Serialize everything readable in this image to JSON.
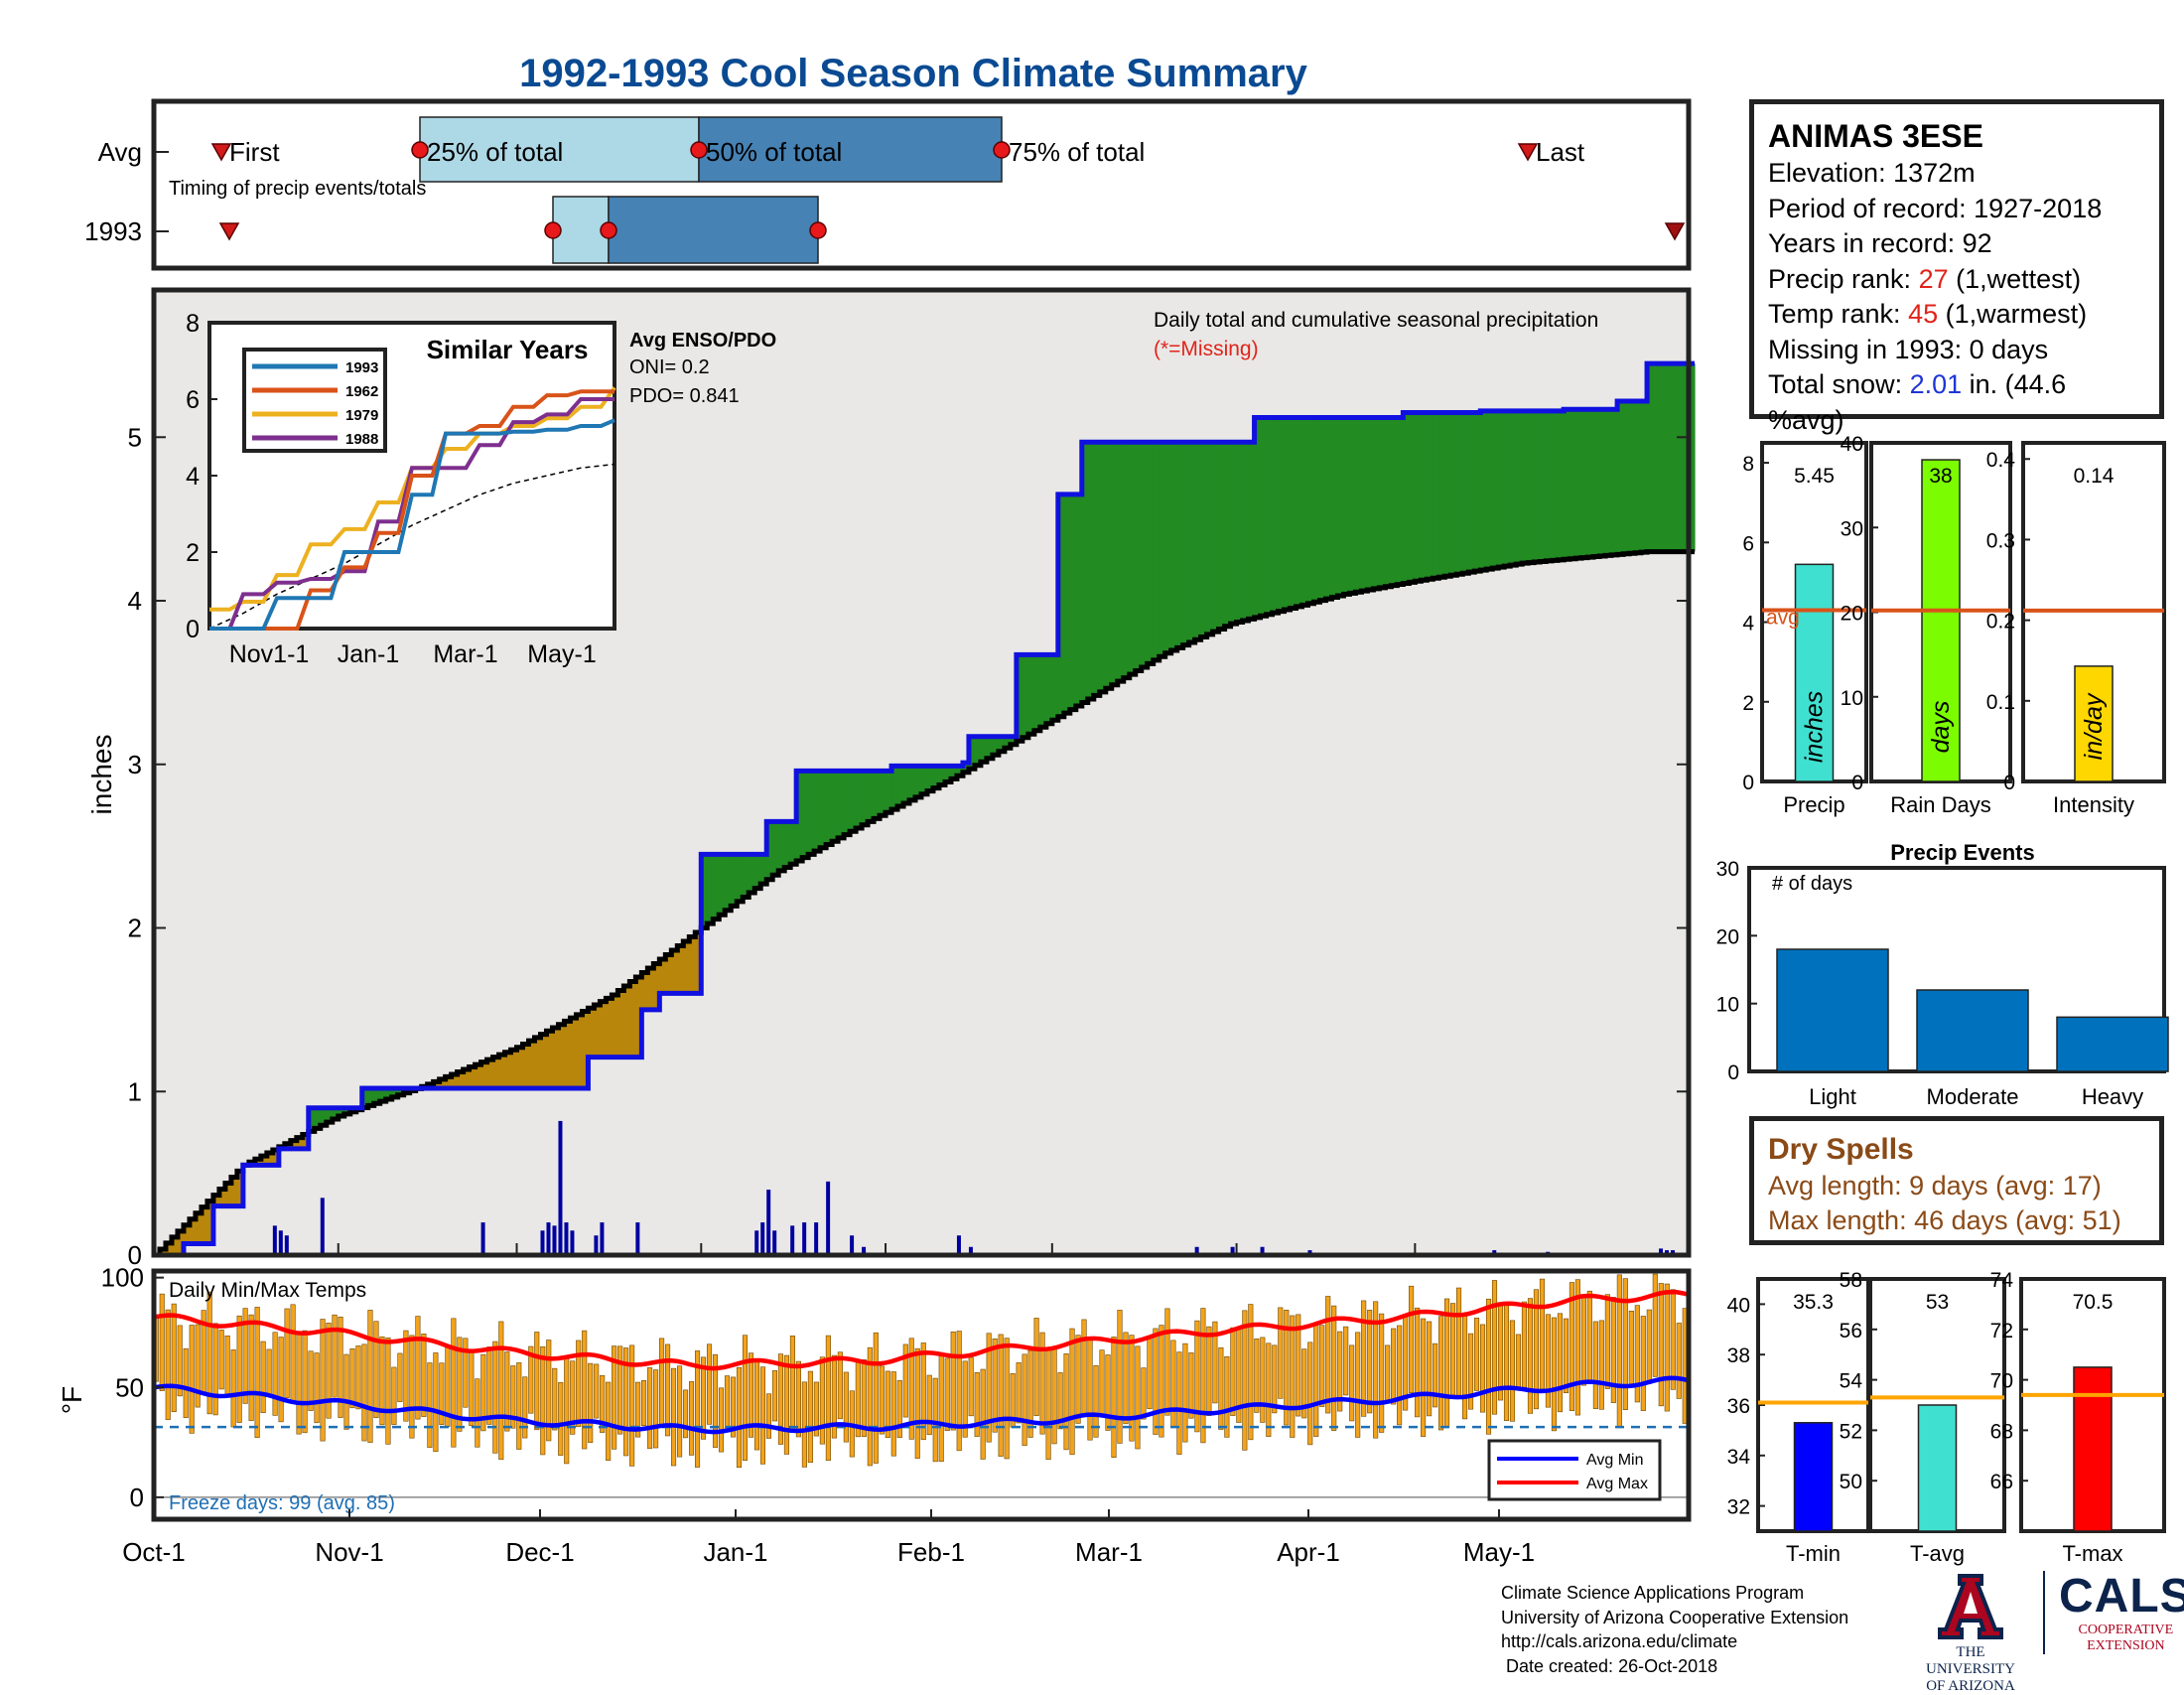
{
  "title": "1992-1993 Cool Season Climate Summary",
  "timing": {
    "row_labels": [
      "Avg",
      "1993"
    ],
    "caption": "Timing of precip events/totals",
    "markers": [
      "First",
      "25% of total",
      "50% of total",
      "75% of total",
      "Last"
    ]
  },
  "main_chart": {
    "ylabel": "inches",
    "yticks": [
      "0",
      "1",
      "2",
      "3",
      "4",
      "5"
    ],
    "caption": "Daily total and cumulative seasonal precipitation",
    "missing_note": "(*=Missing)",
    "xticks": [
      "Oct-1",
      "Nov-1",
      "Dec-1",
      "Jan-1",
      "Feb-1",
      "Mar-1",
      "Apr-1",
      "May-1"
    ]
  },
  "inset": {
    "title": "Similar Years",
    "legend": [
      "1993",
      "1962",
      "1979",
      "1988"
    ],
    "series_colors": [
      "#1f77b4",
      "#d95319",
      "#edb120",
      "#7e2f8e"
    ],
    "yticks": [
      "0",
      "2",
      "4",
      "6",
      "8"
    ],
    "xticks": [
      "Nov1-1",
      "Jan-1",
      "Mar-1",
      "May-1"
    ]
  },
  "enso": {
    "title": "Avg ENSO/PDO",
    "oni": "ONI= 0.2",
    "pdo": "PDO= 0.841"
  },
  "station": {
    "name": "ANIMAS 3ESE",
    "elevation": "Elevation: 1372m",
    "period": "Period of record: 1927-2018",
    "years": "Years in record: 92",
    "precip_rank_label": "Precip rank: ",
    "precip_rank_value": "27",
    "precip_rank_note": " (1,wettest)",
    "temp_rank_label": "Temp rank: ",
    "temp_rank_value": "45",
    "temp_rank_note": " (1,warmest)",
    "missing": "Missing in 1993: 0 days",
    "snow_label": "Total snow: ",
    "snow_value": "2.01",
    "snow_note": " in. (44.6 %avg)"
  },
  "precip_bars": [
    {
      "label": "Precip",
      "value_text": "5.45",
      "unit": "inches",
      "value": 5.45,
      "avg": 4.3,
      "max": 8.5,
      "ticks": [
        "0",
        "2",
        "4",
        "6",
        "8"
      ],
      "color": "#40e0d0",
      "avg_label": "avg"
    },
    {
      "label": "Rain Days",
      "value_text": "38",
      "unit": "days",
      "value": 38,
      "avg": 20.2,
      "max": 40,
      "ticks": [
        "0",
        "10",
        "20",
        "30",
        "40"
      ],
      "color": "#7cfc00",
      "avg_label": ""
    },
    {
      "label": "Intensity",
      "value_text": "0.14",
      "unit": "in/day",
      "value": 0.143,
      "avg": 0.212,
      "max": 0.42,
      "ticks": [
        "0",
        "0.1",
        "0.2",
        "0.3",
        "0.4"
      ],
      "color": "#ffd700",
      "avg_label": ""
    }
  ],
  "precip_events": {
    "title": "Precip Events",
    "ylabel": "# of days",
    "categories": [
      "Light",
      "Moderate",
      "Heavy"
    ],
    "values": [
      18,
      12,
      8
    ],
    "yticks": [
      "0",
      "10",
      "20",
      "30"
    ]
  },
  "dry_spells": {
    "title": "Dry Spells",
    "avg": "Avg length: 9 days (avg: 17)",
    "max": "Max length: 46 days (avg: 51)"
  },
  "temp_chart": {
    "title": "Daily Min/Max Temps",
    "ylabel": "°F",
    "yticks": [
      "0",
      "50",
      "100"
    ],
    "freeze": "Freeze days: 99 (avg. 85)",
    "legend": [
      "Avg Min",
      "Avg Max"
    ]
  },
  "temp_bars": [
    {
      "label": "T-min",
      "value_text": "35.3",
      "value": 35.3,
      "avg": 36.1,
      "min": 31,
      "max": 41,
      "ticks": [
        "32",
        "34",
        "36",
        "38",
        "40"
      ],
      "color": "#0000ff"
    },
    {
      "label": "T-avg",
      "value_text": "53",
      "value": 53,
      "avg": 53.3,
      "min": 48,
      "max": 58,
      "ticks": [
        "50",
        "52",
        "54",
        "56",
        "58"
      ],
      "color": "#40e0d0"
    },
    {
      "label": "T-max",
      "value_text": "70.5",
      "value": 70.5,
      "avg": 69.4,
      "min": 64,
      "max": 74,
      "ticks": [
        "66",
        "68",
        "70",
        "72",
        "74"
      ],
      "color": "#ff0000"
    }
  ],
  "footer": {
    "line1": "Climate Science Applications Program",
    "line2": "University of Arizona Cooperative Extension",
    "line3": "http://cals.arizona.edu/climate",
    "line4": " Date created: 26-Oct-2018"
  },
  "logos": {
    "ua_line1": "THE UNIVERSITY",
    "ua_line2": "OF ARIZONA",
    "cals": "CALS",
    "cals_line1": "COOPERATIVE",
    "cals_line2": "EXTENSION"
  },
  "chart_data": [
    {
      "type": "area",
      "title": "Daily total and cumulative seasonal precipitation",
      "ylabel": "inches",
      "ylim": [
        0,
        5.9
      ],
      "x_labels": [
        "Oct-1",
        "Nov-1",
        "Dec-1",
        "Jan-1",
        "Feb-1",
        "Mar-1",
        "Apr-1",
        "May-1"
      ],
      "series": [
        {
          "name": "1993 cumulative",
          "days": [
            0,
            5,
            10,
            15,
            21,
            26,
            35,
            45,
            53,
            62,
            73,
            78,
            82,
            85,
            92,
            103,
            108,
            122,
            124,
            136,
            137,
            145,
            152,
            156,
            169,
            185,
            210,
            223,
            237,
            246,
            251
          ],
          "values": [
            0,
            0.07,
            0.3,
            0.55,
            0.65,
            0.9,
            1.02,
            1.02,
            1.02,
            1.02,
            1.21,
            1.21,
            1.5,
            1.6,
            2.45,
            2.65,
            2.96,
            2.96,
            2.99,
            3.01,
            3.17,
            3.67,
            4.65,
            4.97,
            4.97,
            5.12,
            5.15,
            5.16,
            5.17,
            5.22,
            5.45
          ]
        },
        {
          "name": "Average cumulative",
          "days": [
            0,
            15,
            31,
            45,
            61,
            77,
            92,
            105,
            120,
            135,
            151,
            170,
            181,
            200,
            212,
            230,
            251
          ],
          "values": [
            0,
            0.55,
            0.85,
            1.03,
            1.27,
            1.59,
            2.0,
            2.35,
            2.65,
            2.93,
            3.27,
            3.68,
            3.86,
            4.04,
            4.12,
            4.23,
            4.3
          ]
        }
      ],
      "daily_bars": {
        "days": [
          20,
          21,
          22,
          28,
          55,
          65,
          66,
          67,
          68,
          69,
          70,
          74,
          75,
          81,
          101,
          102,
          103,
          104,
          107,
          109,
          111,
          113,
          117,
          119,
          135,
          137,
          175,
          181,
          186,
          194,
          225,
          234,
          253,
          254,
          255
        ],
        "values": [
          0.18,
          0.15,
          0.12,
          0.35,
          0.2,
          0.15,
          0.2,
          0.18,
          0.82,
          0.2,
          0.15,
          0.12,
          0.2,
          0.2,
          0.15,
          0.2,
          0.4,
          0.15,
          0.18,
          0.2,
          0.2,
          0.45,
          0.12,
          0.05,
          0.12,
          0.05,
          0.05,
          0.05,
          0.05,
          0.03,
          0.03,
          0.02,
          0.04,
          0.03,
          0.03
        ]
      }
    },
    {
      "type": "line",
      "title": "Similar Years",
      "ylim": [
        0,
        8
      ],
      "series": [
        {
          "name": "1993",
          "values": [
            0,
            0,
            0.8,
            0.8,
            2.0,
            2.0,
            3.5,
            5.1,
            5.1,
            5.15,
            5.2,
            5.3,
            5.45
          ]
        },
        {
          "name": "1962",
          "values": [
            0,
            0,
            0,
            1.0,
            1.6,
            2.5,
            4.0,
            5.1,
            5.3,
            5.8,
            6.1,
            6.2,
            6.2
          ]
        },
        {
          "name": "1979",
          "values": [
            0.5,
            0.7,
            1.4,
            2.2,
            2.6,
            3.3,
            4.2,
            4.7,
            5.1,
            5.3,
            5.5,
            5.8,
            6.3
          ]
        },
        {
          "name": "1988",
          "values": [
            0,
            0.9,
            1.2,
            1.3,
            1.5,
            2.8,
            4.2,
            4.2,
            4.8,
            5.4,
            5.6,
            6.0,
            6.0
          ]
        }
      ],
      "avg": [
        0,
        0.4,
        0.9,
        1.3,
        1.7,
        2.2,
        2.7,
        3.1,
        3.5,
        3.8,
        4.0,
        4.2,
        4.3
      ]
    },
    {
      "type": "bar",
      "title": "Precip Events",
      "categories": [
        "Light",
        "Moderate",
        "Heavy"
      ],
      "values": [
        18,
        12,
        8
      ],
      "ylim": [
        0,
        30
      ]
    },
    {
      "type": "bar",
      "categories": [
        "T-min",
        "T-avg",
        "T-max"
      ],
      "values": [
        35.3,
        53,
        70.5
      ]
    },
    {
      "type": "bar",
      "title": "Daily Min/Max Temps",
      "ylabel": "°F",
      "ylim": [
        -10,
        103
      ],
      "series": [
        {
          "name": "Avg Max",
          "days": [
            0,
            30,
            60,
            90,
            120,
            150,
            180,
            210,
            240,
            256
          ],
          "values": [
            82,
            75,
            66,
            60,
            62,
            69,
            76,
            82,
            90,
            92
          ]
        },
        {
          "name": "Avg Min",
          "days": [
            0,
            30,
            60,
            90,
            120,
            150,
            180,
            210,
            240,
            256
          ],
          "values": [
            50,
            43,
            35,
            31,
            32,
            35,
            40,
            45,
            51,
            53
          ]
        }
      ],
      "freeze_line": 32
    }
  ]
}
